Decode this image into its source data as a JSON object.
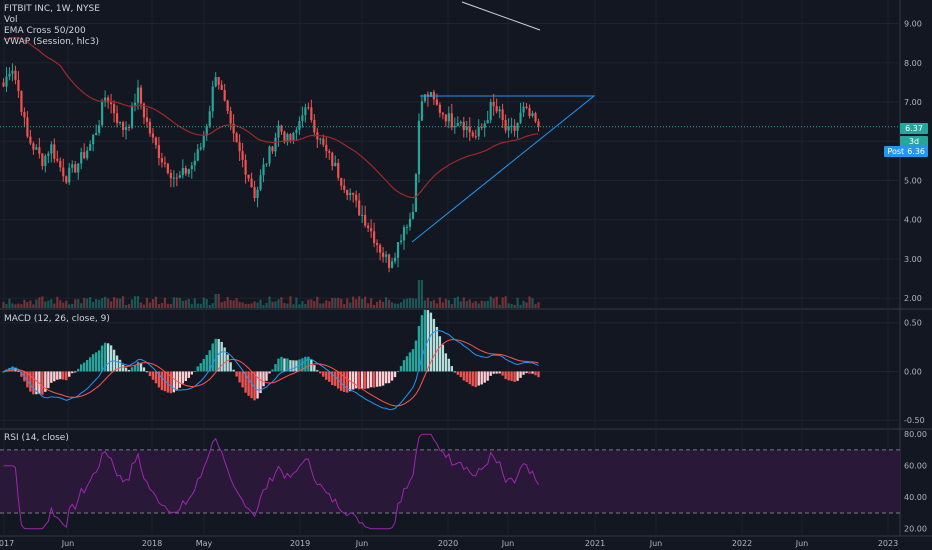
{
  "header": {
    "symbol_line": "FITBIT INC, 1W, NYSE",
    "indicators": [
      "Vol",
      "EMA Cross 50/200",
      "VWAP (Session, hlc3)"
    ]
  },
  "price_tags": {
    "last": "6.37",
    "countdown": "3d 23h",
    "post_label": "Post",
    "post_value": "6.36"
  },
  "panes": {
    "macd_title": "MACD (12, 26, close, 9)",
    "rsi_title": "RSI (14, close)"
  },
  "colors": {
    "background": "#131722",
    "up": "#26a69a",
    "down": "#ef5350",
    "ema_fast": "#d1d4dc",
    "ema_slow": "#a02828",
    "triangle": "#2196f3",
    "rsi_line": "#9c27b0",
    "rsi_fill": "#2a1838",
    "macd_line": "#2196f3",
    "signal_line": "#ff5252",
    "accent_tag": "#2196f3"
  },
  "chart_data": [
    {
      "type": "candlestick",
      "title": "FITBIT INC, 1W, NYSE",
      "y_ticks": [
        "9.00",
        "8.00",
        "7.00",
        "6.00",
        "5.00",
        "4.00",
        "3.00",
        "2.00"
      ],
      "ylim": [
        1.75,
        9.6
      ],
      "x_ticks": [
        "2017",
        "Jun",
        "2018",
        "May",
        "2019",
        "Jun",
        "2020",
        "Jun",
        "2021",
        "Jun",
        "2022",
        "Jun",
        "2023"
      ],
      "last_price": 6.37,
      "post_price": 6.36,
      "close_path": [
        7.4,
        8.0,
        7.2,
        6.1,
        5.8,
        5.5,
        5.9,
        5.4,
        5.1,
        5.3,
        5.6,
        5.9,
        6.4,
        7.2,
        6.8,
        6.3,
        6.5,
        7.3,
        6.6,
        6.0,
        5.6,
        5.3,
        5.0,
        5.2,
        5.4,
        5.8,
        6.6,
        7.8,
        7.0,
        6.2,
        5.7,
        5.2,
        4.6,
        5.3,
        5.8,
        6.4,
        6.0,
        6.1,
        6.8,
        6.7,
        6.1,
        5.7,
        5.4,
        5.0,
        4.7,
        4.3,
        4.0,
        3.6,
        3.2,
        2.9,
        3.3,
        3.9,
        4.1,
        7.0,
        7.2,
        6.9,
        6.7,
        6.5,
        6.6,
        6.3,
        6.1,
        6.4,
        6.9,
        6.7,
        6.2,
        6.3,
        6.8,
        6.6,
        6.37
      ]
    },
    {
      "type": "bar",
      "title": "MACD (12, 26, close, 9)",
      "y_ticks": [
        "0.50",
        "0.00",
        "-0.50"
      ],
      "ylim": [
        -0.58,
        0.62
      ]
    },
    {
      "type": "line",
      "title": "RSI (14, close)",
      "y_ticks": [
        "80.00",
        "60.00",
        "40.00",
        "20.00"
      ],
      "ylim": [
        16,
        82
      ],
      "bands": [
        30,
        70
      ]
    }
  ]
}
